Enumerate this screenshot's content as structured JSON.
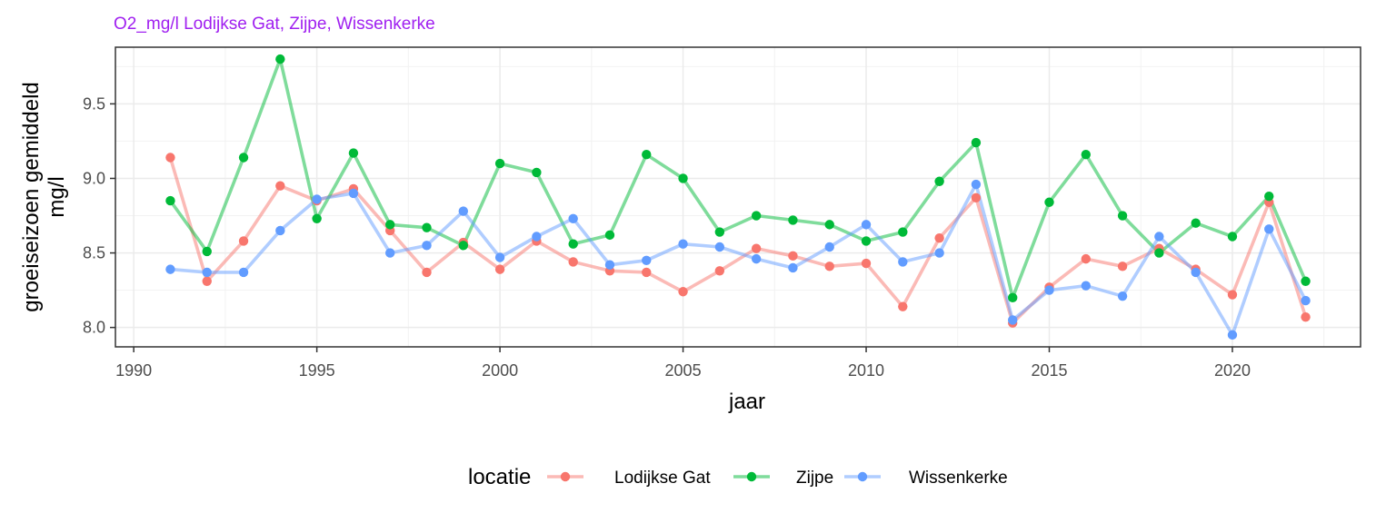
{
  "chart_data": {
    "type": "line",
    "title": "O2_mg/l Lodijkse Gat, Zijpe, Wissenkerke",
    "xlabel": "jaar",
    "ylabel_lines": [
      "groeiseizoen gemiddeld",
      "mg/l"
    ],
    "xlim": [
      1989.5,
      2023.5
    ],
    "ylim": [
      7.87,
      9.88
    ],
    "xticks": [
      1990,
      1995,
      2000,
      2005,
      2010,
      2015,
      2020
    ],
    "yticks": [
      8.0,
      8.5,
      9.0,
      9.5
    ],
    "ytick_labels": [
      "8.0",
      "8.5",
      "9.0",
      "9.5"
    ],
    "grid": true,
    "legend": {
      "title": "locatie",
      "position": "bottom"
    },
    "x": [
      1991,
      1992,
      1993,
      1994,
      1995,
      1996,
      1997,
      1998,
      1999,
      2000,
      2001,
      2002,
      2003,
      2004,
      2005,
      2006,
      2007,
      2008,
      2009,
      2010,
      2011,
      2012,
      2013,
      2014,
      2015,
      2016,
      2017,
      2018,
      2019,
      2020,
      2021,
      2022
    ],
    "series": [
      {
        "name": "Lodijkse Gat",
        "color": "#F8766D",
        "values": [
          9.14,
          8.31,
          8.58,
          8.95,
          8.85,
          8.93,
          8.65,
          8.37,
          8.57,
          8.39,
          8.58,
          8.44,
          8.38,
          8.37,
          8.24,
          8.38,
          8.53,
          8.48,
          8.41,
          8.43,
          8.14,
          8.6,
          8.87,
          8.03,
          8.27,
          8.46,
          8.41,
          8.53,
          8.39,
          8.22,
          8.84,
          8.07
        ]
      },
      {
        "name": "Zijpe",
        "color": "#00BA38",
        "values": [
          8.85,
          8.51,
          9.14,
          9.8,
          8.73,
          9.17,
          8.69,
          8.67,
          8.55,
          9.1,
          9.04,
          8.56,
          8.62,
          9.16,
          9.0,
          8.64,
          8.75,
          8.72,
          8.69,
          8.58,
          8.64,
          8.98,
          9.24,
          8.2,
          8.84,
          9.16,
          8.75,
          8.5,
          8.7,
          8.61,
          8.88,
          8.31
        ]
      },
      {
        "name": "Wissenkerke",
        "color": "#619CFF",
        "values": [
          8.39,
          8.37,
          8.37,
          8.65,
          8.86,
          8.9,
          8.5,
          8.55,
          8.78,
          8.47,
          8.61,
          8.73,
          8.42,
          8.45,
          8.56,
          8.54,
          8.46,
          8.4,
          8.54,
          8.69,
          8.44,
          8.5,
          8.96,
          8.05,
          8.25,
          8.28,
          8.21,
          8.61,
          8.37,
          7.95,
          8.66,
          8.18
        ]
      }
    ]
  }
}
